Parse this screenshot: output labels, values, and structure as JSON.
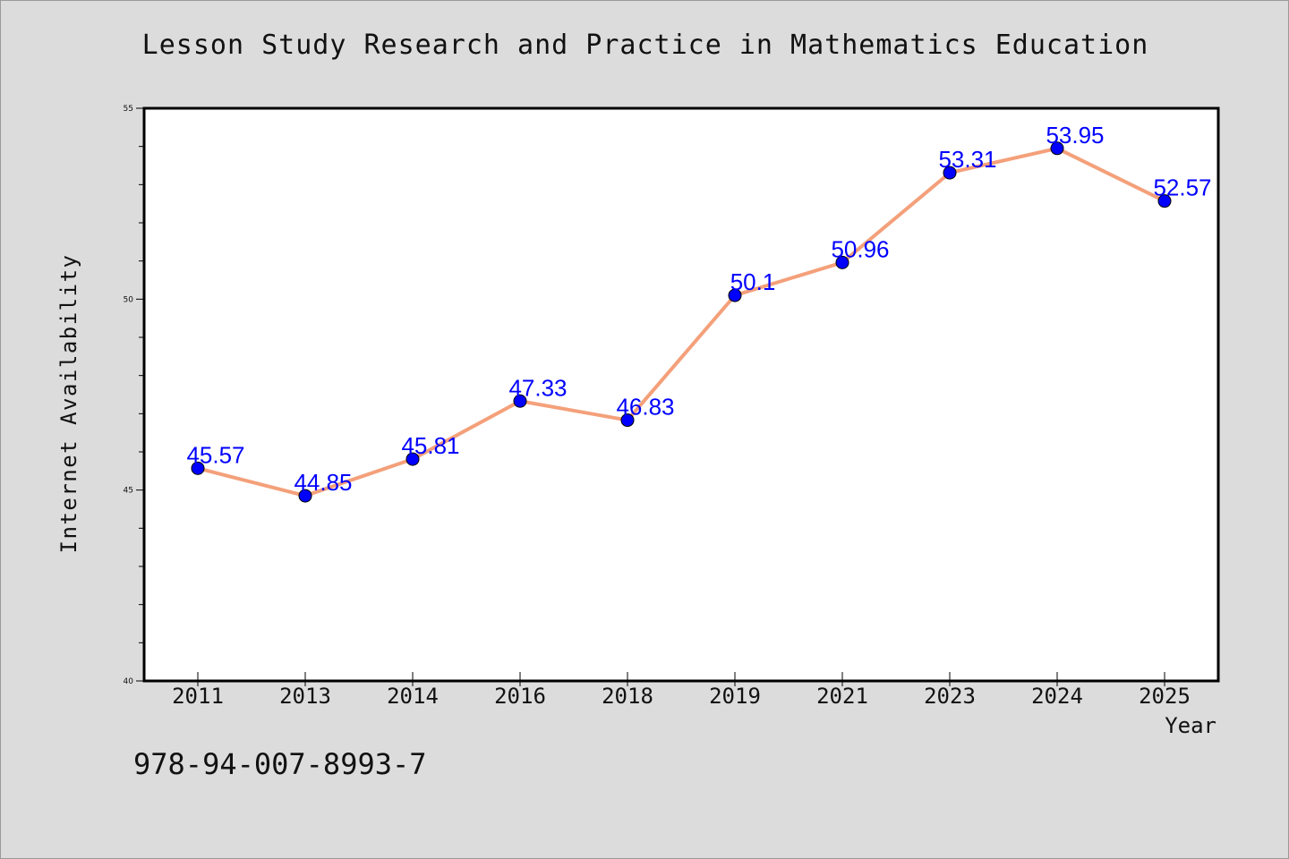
{
  "chart_data": {
    "type": "line",
    "title": "Lesson Study Research and Practice in Mathematics Education",
    "xlabel": "Year",
    "ylabel": "Internet Availability",
    "categories": [
      "2011",
      "2013",
      "2014",
      "2016",
      "2018",
      "2019",
      "2021",
      "2023",
      "2024",
      "2025"
    ],
    "values": [
      45.57,
      44.85,
      45.81,
      47.33,
      46.83,
      50.1,
      50.96,
      53.31,
      53.95,
      52.57
    ],
    "data_labels": [
      "45.57",
      "44.85",
      "45.81",
      "47.33",
      "46.83",
      "50.1",
      "50.96",
      "53.31",
      "53.95",
      "52.57"
    ],
    "ylim": [
      40,
      55
    ],
    "yticks": [
      40,
      45,
      50,
      55
    ],
    "yticks_minor_step": 1,
    "grid": false,
    "line_color": "#f4a07a",
    "marker_color": "#0000ff",
    "label_color": "#0000ff",
    "background_color": "#dcdcdc",
    "plot_background": "#ffffff"
  },
  "footer": {
    "isbn": "978-94-007-8993-7"
  }
}
